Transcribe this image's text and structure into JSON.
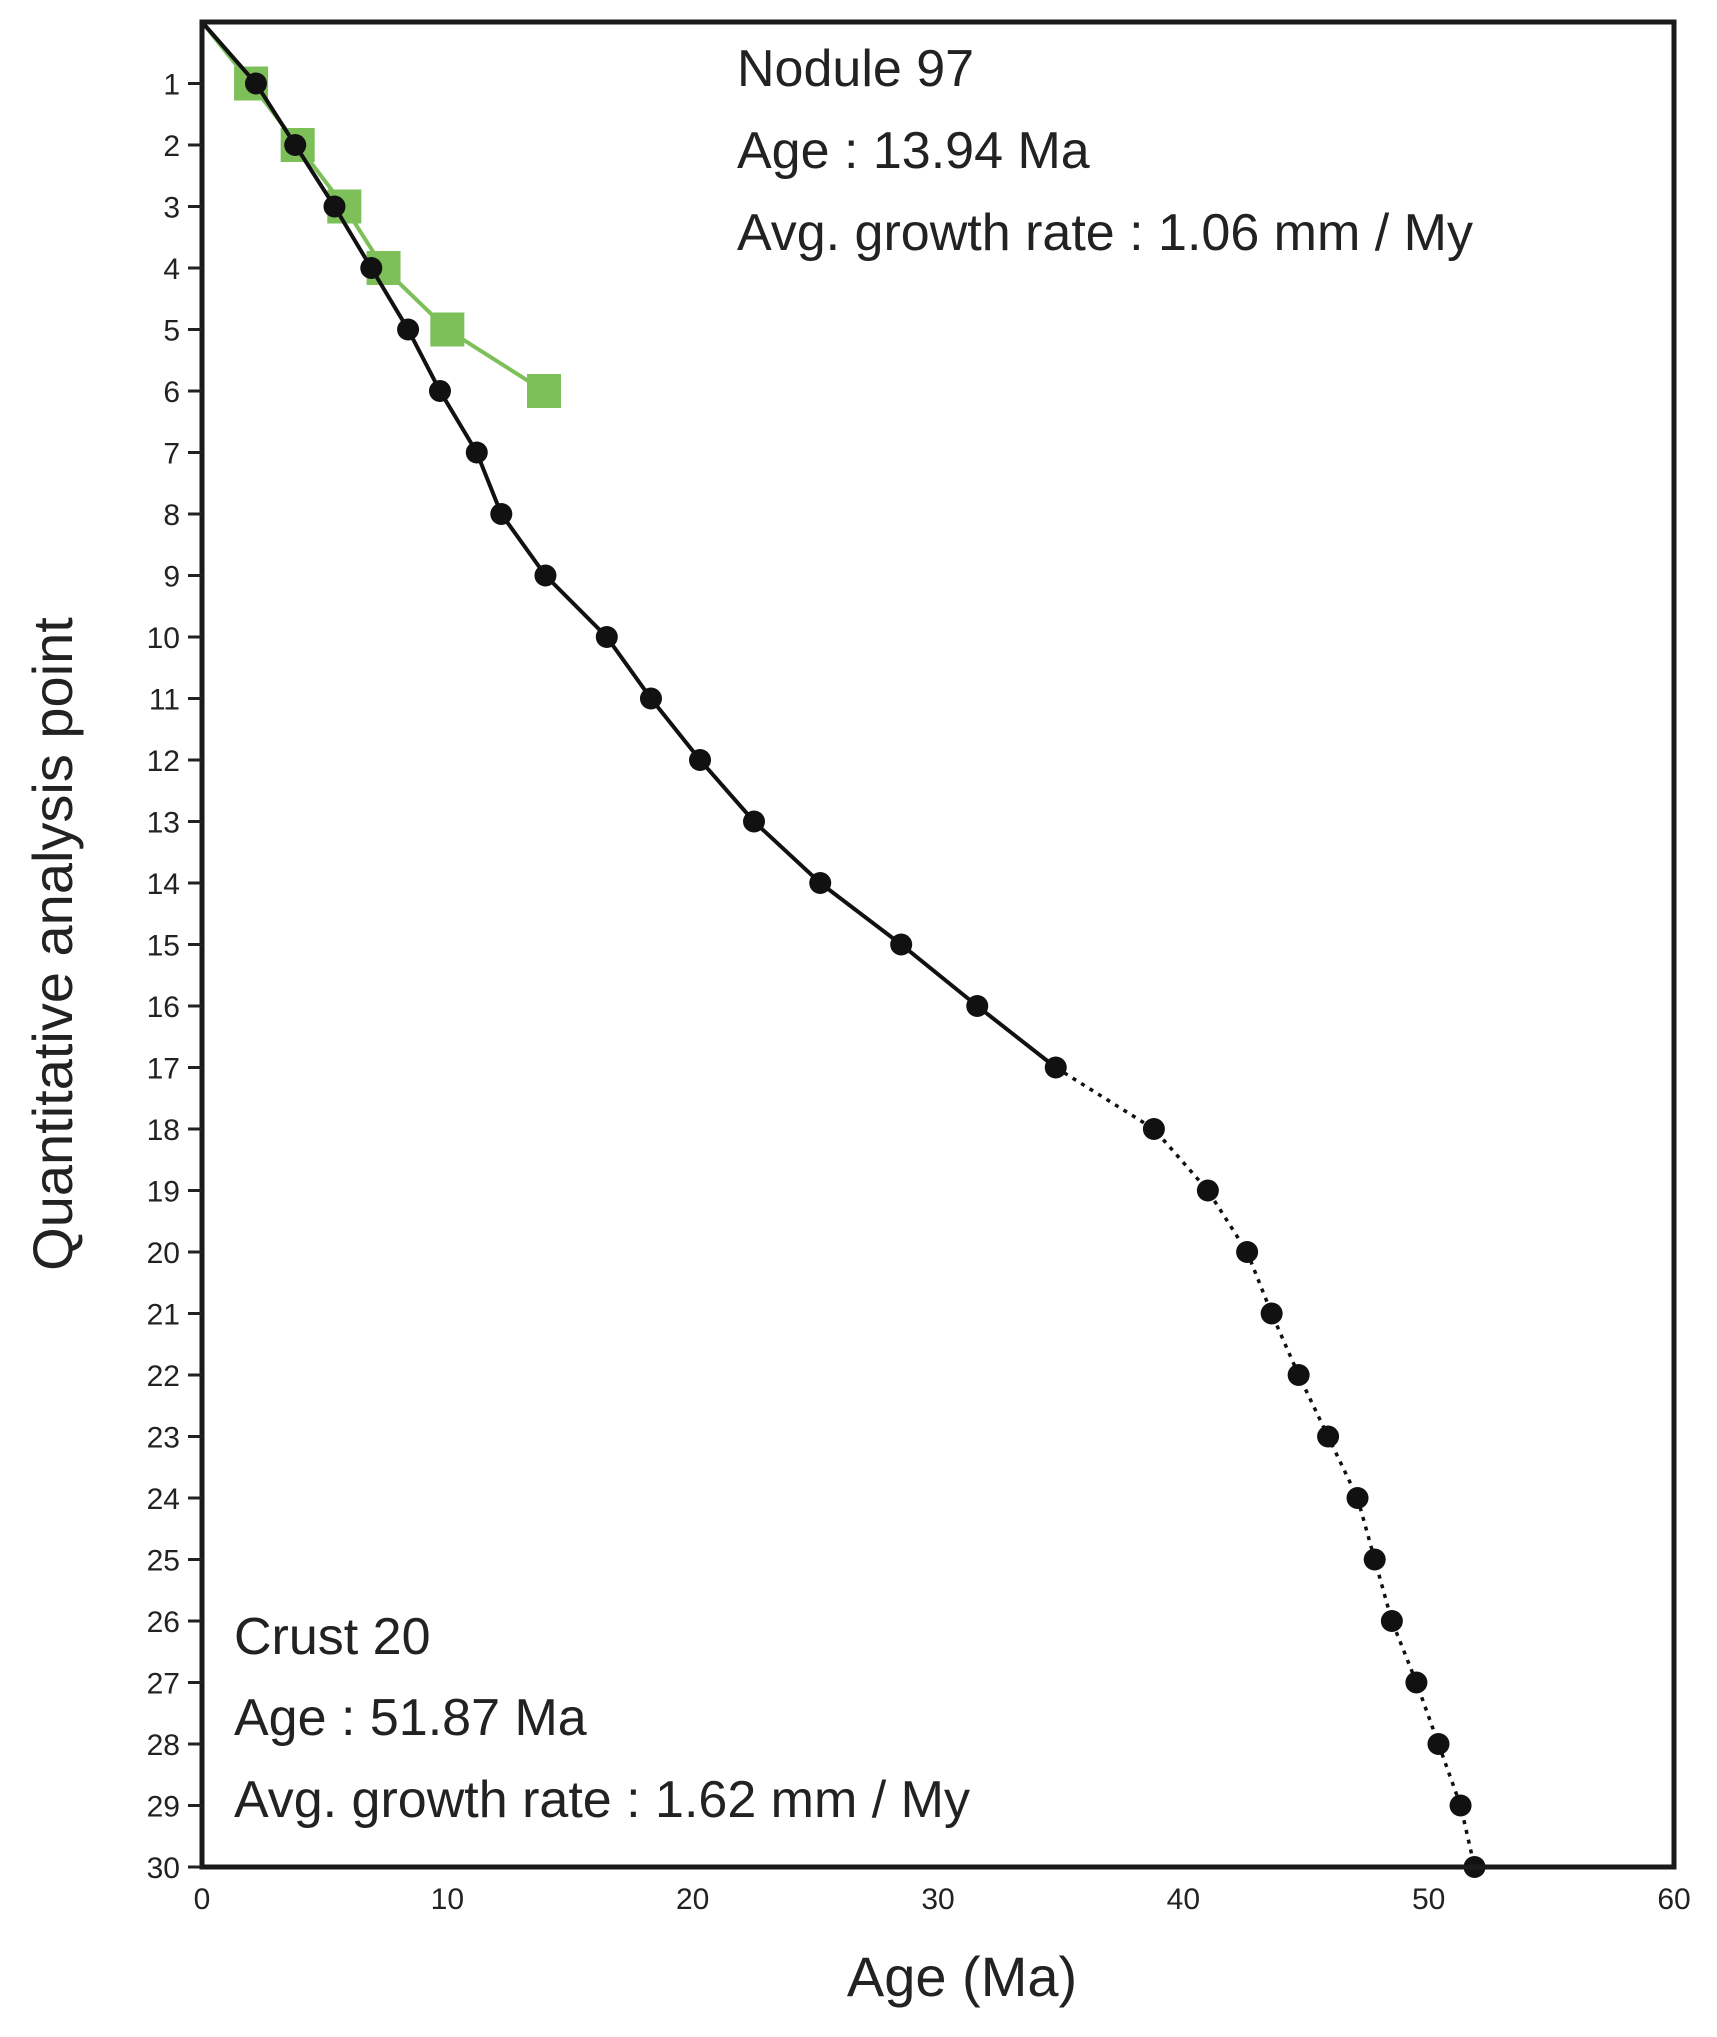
{
  "chart_data": {
    "type": "line",
    "title": "",
    "xlabel": "Age (Ma)",
    "ylabel": "Quantitative analysis point",
    "xlim": [
      0,
      60
    ],
    "ylim": [
      0,
      30
    ],
    "y_inverted": true,
    "x_ticks": [
      "0",
      "10",
      "20",
      "30",
      "40",
      "50",
      "60"
    ],
    "y_ticks": [
      "1",
      "2",
      "3",
      "4",
      "5",
      "6",
      "7",
      "8",
      "9",
      "10",
      "11",
      "12",
      "13",
      "14",
      "15",
      "16",
      "17",
      "18",
      "19",
      "20",
      "21",
      "22",
      "23",
      "24",
      "25",
      "26",
      "27",
      "28",
      "29",
      "30"
    ],
    "grid": false,
    "series": [
      {
        "name": "Crust 20",
        "color": "#111111",
        "marker": "circle",
        "dotted_from_point": 17,
        "points": [
          [
            0,
            0
          ],
          [
            2.2,
            1
          ],
          [
            3.8,
            2
          ],
          [
            5.4,
            3
          ],
          [
            6.9,
            4
          ],
          [
            8.4,
            5
          ],
          [
            9.7,
            6
          ],
          [
            11.2,
            7
          ],
          [
            12.2,
            8
          ],
          [
            14.0,
            9
          ],
          [
            16.5,
            10
          ],
          [
            18.3,
            11
          ],
          [
            20.3,
            12
          ],
          [
            22.5,
            13
          ],
          [
            25.2,
            14
          ],
          [
            28.5,
            15
          ],
          [
            31.6,
            16
          ],
          [
            34.8,
            17
          ],
          [
            38.8,
            18
          ],
          [
            41.0,
            19
          ],
          [
            42.6,
            20
          ],
          [
            43.6,
            21
          ],
          [
            44.7,
            22
          ],
          [
            45.9,
            23
          ],
          [
            47.1,
            24
          ],
          [
            47.8,
            25
          ],
          [
            48.5,
            26
          ],
          [
            49.5,
            27
          ],
          [
            50.4,
            28
          ],
          [
            51.3,
            29
          ],
          [
            51.87,
            30
          ]
        ]
      },
      {
        "name": "Nodule 97",
        "color": "#7dc05a",
        "marker": "square",
        "points": [
          [
            0,
            0
          ],
          [
            2.0,
            1
          ],
          [
            3.9,
            2
          ],
          [
            5.8,
            3
          ],
          [
            7.4,
            4
          ],
          [
            10.0,
            5
          ],
          [
            13.94,
            6
          ]
        ]
      }
    ],
    "annotations": {
      "nodule": [
        "Nodule 97",
        "Age : 13.94 Ma",
        "Avg. growth rate : 1.06 mm / My"
      ],
      "crust": [
        "Crust 20",
        "Age : 51.87 Ma",
        "Avg. growth rate : 1.62 mm / My"
      ]
    }
  }
}
